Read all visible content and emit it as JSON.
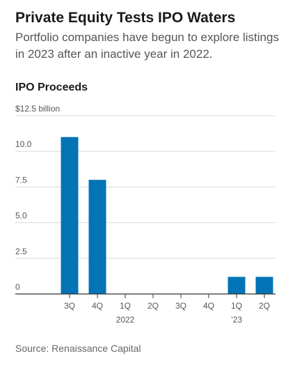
{
  "header": {
    "title": "Private Equity Tests IPO Waters",
    "subtitle": "Portfolio companies have begun to explore listings in 2023 after an inactive year in 2022."
  },
  "chart_title": "IPO Proceeds",
  "source": "Source: Renaissance Capital",
  "colors": {
    "bar": "#0274b6",
    "grid": "#d8d8d8",
    "axis": "#333333"
  },
  "chart_data": {
    "type": "bar",
    "title": "IPO Proceeds",
    "categories": [
      "3Q",
      "4Q",
      "1Q",
      "2Q",
      "3Q",
      "4Q",
      "1Q",
      "2Q"
    ],
    "category_sublabels": [
      "",
      "",
      "2022",
      "",
      "",
      "",
      "’23",
      ""
    ],
    "values": [
      11.0,
      8.0,
      0,
      0,
      0,
      0,
      1.2,
      1.2
    ],
    "y_ticks": [
      0,
      2.5,
      5.0,
      7.5,
      10.0,
      12.5
    ],
    "y_tick_labels": [
      "0",
      "2.5",
      "5.0",
      "7.5",
      "10.0",
      "$12.5 billion"
    ],
    "ylim": [
      0,
      12.5
    ],
    "grid": true,
    "xlabel": "",
    "ylabel": ""
  }
}
